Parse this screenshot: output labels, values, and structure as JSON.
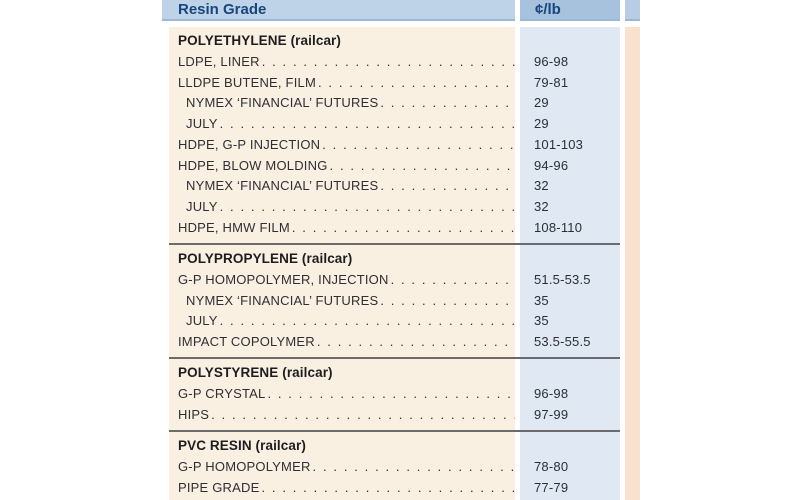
{
  "chart_data": {
    "type": "table",
    "columns": [
      "Resin Grade",
      "¢/lb"
    ],
    "sections": [
      {
        "title": "POLYETHYLENE (railcar)",
        "rows": [
          {
            "label": "LDPE, LINER",
            "price": "96-98",
            "indent": false
          },
          {
            "label": "LLDPE BUTENE, FILM",
            "price": "79-81",
            "indent": false
          },
          {
            "label": "NYMEX ‘FINANCIAL’ FUTURES",
            "price": "29",
            "indent": true
          },
          {
            "label": "JULY",
            "price": "29",
            "indent": true
          },
          {
            "label": "HDPE, G-P INJECTION",
            "price": "101-103",
            "indent": false
          },
          {
            "label": "HDPE, BLOW MOLDING",
            "price": "94-96",
            "indent": false
          },
          {
            "label": "NYMEX ‘FINANCIAL’ FUTURES",
            "price": "32",
            "indent": true
          },
          {
            "label": "JULY",
            "price": "32",
            "indent": true
          },
          {
            "label": "HDPE, HMW FILM",
            "price": "108-110",
            "indent": false
          }
        ]
      },
      {
        "title": "POLYPROPYLENE (railcar)",
        "rows": [
          {
            "label": "G-P HOMOPOLYMER, INJECTION",
            "price": "51.5-53.5",
            "indent": false
          },
          {
            "label": "NYMEX ‘FINANCIAL’ FUTURES",
            "price": "35",
            "indent": true
          },
          {
            "label": "JULY",
            "price": "35",
            "indent": true
          },
          {
            "label": "IMPACT COPOLYMER",
            "price": "53.5-55.5",
            "indent": false
          }
        ]
      },
      {
        "title": "POLYSTYRENE (railcar)",
        "rows": [
          {
            "label": "G-P CRYSTAL",
            "price": "96-98",
            "indent": false
          },
          {
            "label": "HIPS",
            "price": "97-99",
            "indent": false
          }
        ]
      },
      {
        "title": "PVC RESIN (railcar)",
        "rows": [
          {
            "label": "G-P HOMOPOLYMER",
            "price": "78-80",
            "indent": false
          },
          {
            "label": "PIPE GRADE",
            "price": "77-79",
            "indent": false
          }
        ]
      }
    ],
    "layout": {
      "grid": "off",
      "legend": "none",
      "note": "two-column print pricing table with dot leaders; sliver of adjacent column visible at right edge"
    },
    "colors": {
      "header_grade_bg": "#bed3e7",
      "header_price_bg": "#a6c2dc",
      "header_next_bg": "#b7cde3",
      "header_text": "#17467d",
      "grade_column_bg": "#faf0e2",
      "price_column_bg": "#dfe8f3",
      "next_column_bg": "#f9e2cd",
      "body_text": "#2e2e34",
      "divider": "#6b6b6d"
    }
  }
}
